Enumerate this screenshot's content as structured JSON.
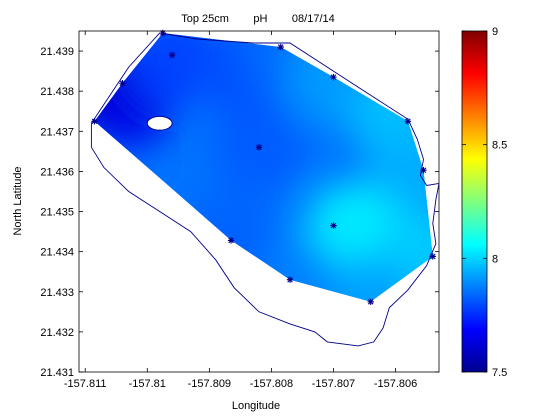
{
  "chart_data": {
    "type": "heatmap",
    "title": "Top 25cm        pH        08/17/14",
    "xlabel": "Longitude",
    "ylabel": "North Latitude",
    "xlim": [
      -157.8111,
      -157.8053
    ],
    "ylim": [
      21.431,
      21.4395
    ],
    "x_ticks": [
      -157.811,
      -157.81,
      -157.809,
      -157.808,
      -157.807,
      -157.806
    ],
    "x_tick_labels": [
      "-157.811",
      "-157.81",
      "-157.809",
      "-157.808",
      "-157.807",
      "-157.806"
    ],
    "y_ticks": [
      21.431,
      21.432,
      21.433,
      21.434,
      21.435,
      21.436,
      21.437,
      21.438,
      21.439
    ],
    "y_tick_labels": [
      "21.431",
      "21.432",
      "21.433",
      "21.434",
      "21.435",
      "21.436",
      "21.437",
      "21.438",
      "21.439"
    ],
    "colorbar": {
      "range": [
        7.5,
        9
      ],
      "ticks": [
        7.5,
        8,
        8.5,
        9
      ],
      "tick_labels": [
        "7.5",
        "8",
        "8.5",
        "9"
      ],
      "colormap": "jet"
    },
    "contour_field": {
      "color_low": "#00008f",
      "color_high": "#7f0000",
      "approx_ph_values": [
        {
          "lon": -157.8109,
          "lat": 21.4382,
          "ph": 7.55
        },
        {
          "lon": -157.8103,
          "lat": 21.4377,
          "ph": 7.65
        },
        {
          "lon": -157.8096,
          "lat": 21.4388,
          "ph": 7.78
        },
        {
          "lon": -157.8085,
          "lat": 21.4385,
          "ph": 7.8
        },
        {
          "lon": -157.8077,
          "lat": 21.439,
          "ph": 7.85
        },
        {
          "lon": -157.807,
          "lat": 21.4383,
          "ph": 7.92
        },
        {
          "lon": -157.806,
          "lat": 21.4373,
          "ph": 7.98
        },
        {
          "lon": -157.8057,
          "lat": 21.436,
          "ph": 7.95
        },
        {
          "lon": -157.8067,
          "lat": 21.4346,
          "ph": 8.05
        },
        {
          "lon": -157.8056,
          "lat": 21.4339,
          "ph": 8.0
        },
        {
          "lon": -157.8064,
          "lat": 21.4328,
          "ph": 7.93
        },
        {
          "lon": -157.8077,
          "lat": 21.4333,
          "ph": 7.88
        },
        {
          "lon": -157.8087,
          "lat": 21.4343,
          "ph": 7.83
        },
        {
          "lon": -157.8082,
          "lat": 21.4366,
          "ph": 7.82
        }
      ]
    },
    "stations": [
      {
        "lon": -157.81085,
        "lat": 21.43725
      },
      {
        "lon": -157.8104,
        "lat": 21.4382
      },
      {
        "lon": -157.80975,
        "lat": 21.43945
      },
      {
        "lon": -157.8096,
        "lat": 21.4389
      },
      {
        "lon": -157.8082,
        "lat": 21.4366
      },
      {
        "lon": -157.80785,
        "lat": 21.4391
      },
      {
        "lon": -157.807,
        "lat": 21.43835
      },
      {
        "lon": -157.8058,
        "lat": 21.43725
      },
      {
        "lon": -157.80555,
        "lat": 21.43603
      },
      {
        "lon": -157.8054,
        "lat": 21.43388
      },
      {
        "lon": -157.8064,
        "lat": 21.43275
      },
      {
        "lon": -157.807,
        "lat": 21.43465
      },
      {
        "lon": -157.8077,
        "lat": 21.4333
      },
      {
        "lon": -157.80865,
        "lat": 21.43428
      }
    ],
    "interpolation_hull": [
      [
        -157.81085,
        21.43725
      ],
      [
        -157.8104,
        21.4382
      ],
      [
        -157.80975,
        21.43945
      ],
      [
        -157.80785,
        21.4391
      ],
      [
        -157.807,
        21.43835
      ],
      [
        -157.8058,
        21.43725
      ],
      [
        -157.80555,
        21.43603
      ],
      [
        -157.8054,
        21.43388
      ],
      [
        -157.8064,
        21.43275
      ],
      [
        -157.8077,
        21.4333
      ],
      [
        -157.80865,
        21.43428
      ]
    ],
    "coastline": [
      [
        -157.8109,
        21.4372
      ],
      [
        -157.8103,
        21.4386
      ],
      [
        -157.8098,
        21.43945
      ],
      [
        -157.8092,
        21.4393
      ],
      [
        -157.8083,
        21.4392
      ],
      [
        -157.8077,
        21.4392
      ],
      [
        -157.8072,
        21.4387
      ],
      [
        -157.8067,
        21.4382
      ],
      [
        -157.8063,
        21.4378
      ],
      [
        -157.8058,
        21.4373
      ],
      [
        -157.80565,
        21.4368
      ],
      [
        -157.80555,
        21.4363
      ],
      [
        -157.8056,
        21.4359
      ],
      [
        -157.8055,
        21.43565
      ],
      [
        -157.8053,
        21.4357
      ],
      [
        -157.80535,
        21.4353
      ],
      [
        -157.8054,
        21.4347
      ],
      [
        -157.80535,
        21.4342
      ],
      [
        -157.8055,
        21.43365
      ],
      [
        -157.8058,
        21.43305
      ],
      [
        -157.8061,
        21.4326
      ],
      [
        -157.8062,
        21.4321
      ],
      [
        -157.80635,
        21.43175
      ],
      [
        -157.8066,
        21.43165
      ],
      [
        -157.8071,
        21.43175
      ],
      [
        -157.8073,
        21.432
      ],
      [
        -157.8077,
        21.4322
      ],
      [
        -157.8082,
        21.4325
      ],
      [
        -157.8086,
        21.4331
      ],
      [
        -157.8089,
        21.4338
      ],
      [
        -157.8093,
        21.4345
      ],
      [
        -157.8098,
        21.435
      ],
      [
        -157.8103,
        21.4355
      ],
      [
        -157.8107,
        21.4361
      ],
      [
        -157.8109,
        21.4366
      ],
      [
        -157.8109,
        21.4372
      ]
    ],
    "island": {
      "lon": -157.8098,
      "lat": 21.4372,
      "rx_deg": 0.0002,
      "ry_deg": 0.00017
    },
    "grid": false
  }
}
